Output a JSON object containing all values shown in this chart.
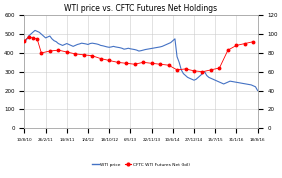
{
  "title": "WTI price vs. CFTC Futures Net Holdings",
  "xtick_labels": [
    "10/8/10",
    "26/2/11",
    "14/9/11",
    "1/4/12",
    "18/10/12",
    "6/5/13",
    "22/11/13",
    "10/6/14",
    "27/12/14",
    "15/7/15",
    "31/1/16",
    "18/8/16"
  ],
  "left_ylim": [
    0,
    600
  ],
  "right_ylim": [
    0,
    120
  ],
  "left_yticks": [
    0,
    100,
    200,
    300,
    400,
    500,
    600
  ],
  "right_yticks": [
    0,
    20,
    40,
    60,
    80,
    100,
    120
  ],
  "wti_color": "#4472C4",
  "cftc_color": "#FF0000",
  "bg_color": "#FFFFFF",
  "legend_wti": "WTI price",
  "legend_cftc": "CFTC WTI Futures Net (bil)",
  "wti_x": [
    0,
    1,
    2,
    3,
    4,
    5,
    6,
    7,
    8,
    9,
    10,
    11,
    12,
    13,
    14,
    15,
    16,
    17,
    18,
    19,
    20,
    21,
    22,
    23,
    24,
    25,
    26,
    27,
    28,
    29,
    30,
    31,
    32,
    33,
    34,
    35,
    36,
    37,
    38,
    39,
    40,
    41,
    42,
    43,
    44,
    45,
    46,
    47,
    48,
    49,
    50,
    51,
    52,
    53,
    54,
    55,
    56,
    57,
    58,
    59,
    60,
    61,
    62,
    63,
    64,
    65,
    66,
    67,
    68,
    69,
    70,
    71,
    72,
    73,
    74,
    75,
    76,
    77,
    78,
    79,
    80,
    81,
    82,
    83,
    84,
    85,
    86,
    87,
    88,
    89,
    90,
    91,
    92,
    93,
    94,
    95,
    96,
    97,
    98,
    99,
    100,
    101,
    102,
    103,
    104,
    105,
    106,
    107,
    108,
    109,
    110
  ],
  "wti_y": [
    460,
    470,
    490,
    500,
    510,
    520,
    515,
    510,
    500,
    490,
    480,
    485,
    490,
    475,
    465,
    460,
    450,
    445,
    440,
    445,
    450,
    445,
    440,
    435,
    440,
    445,
    448,
    452,
    450,
    448,
    445,
    450,
    452,
    450,
    448,
    445,
    440,
    438,
    435,
    432,
    430,
    432,
    435,
    432,
    430,
    428,
    425,
    420,
    422,
    425,
    422,
    420,
    418,
    415,
    410,
    412,
    415,
    418,
    420,
    422,
    424,
    426,
    428,
    430,
    432,
    435,
    440,
    445,
    450,
    455,
    465,
    475,
    380,
    350,
    310,
    290,
    280,
    270,
    265,
    260,
    255,
    260,
    270,
    280,
    290,
    300,
    280,
    270,
    265,
    260,
    255,
    250,
    245,
    240,
    235,
    240,
    245,
    250,
    248,
    246,
    244,
    242,
    240,
    238,
    236,
    234,
    232,
    230,
    225,
    220,
    200
  ],
  "cftc_x": [
    0,
    2,
    4,
    6,
    8,
    12,
    16,
    20,
    24,
    28,
    32,
    36,
    40,
    44,
    48,
    52,
    56,
    60,
    64,
    68,
    72,
    76,
    80,
    84,
    88,
    92,
    96,
    100,
    104,
    108
  ],
  "cftc_y": [
    93,
    97,
    96,
    95,
    80,
    82,
    83,
    81,
    79,
    78,
    77,
    74,
    72,
    70,
    69,
    68,
    70,
    69,
    68,
    67,
    62,
    63,
    61,
    60,
    62,
    64,
    83,
    88,
    90,
    92
  ]
}
